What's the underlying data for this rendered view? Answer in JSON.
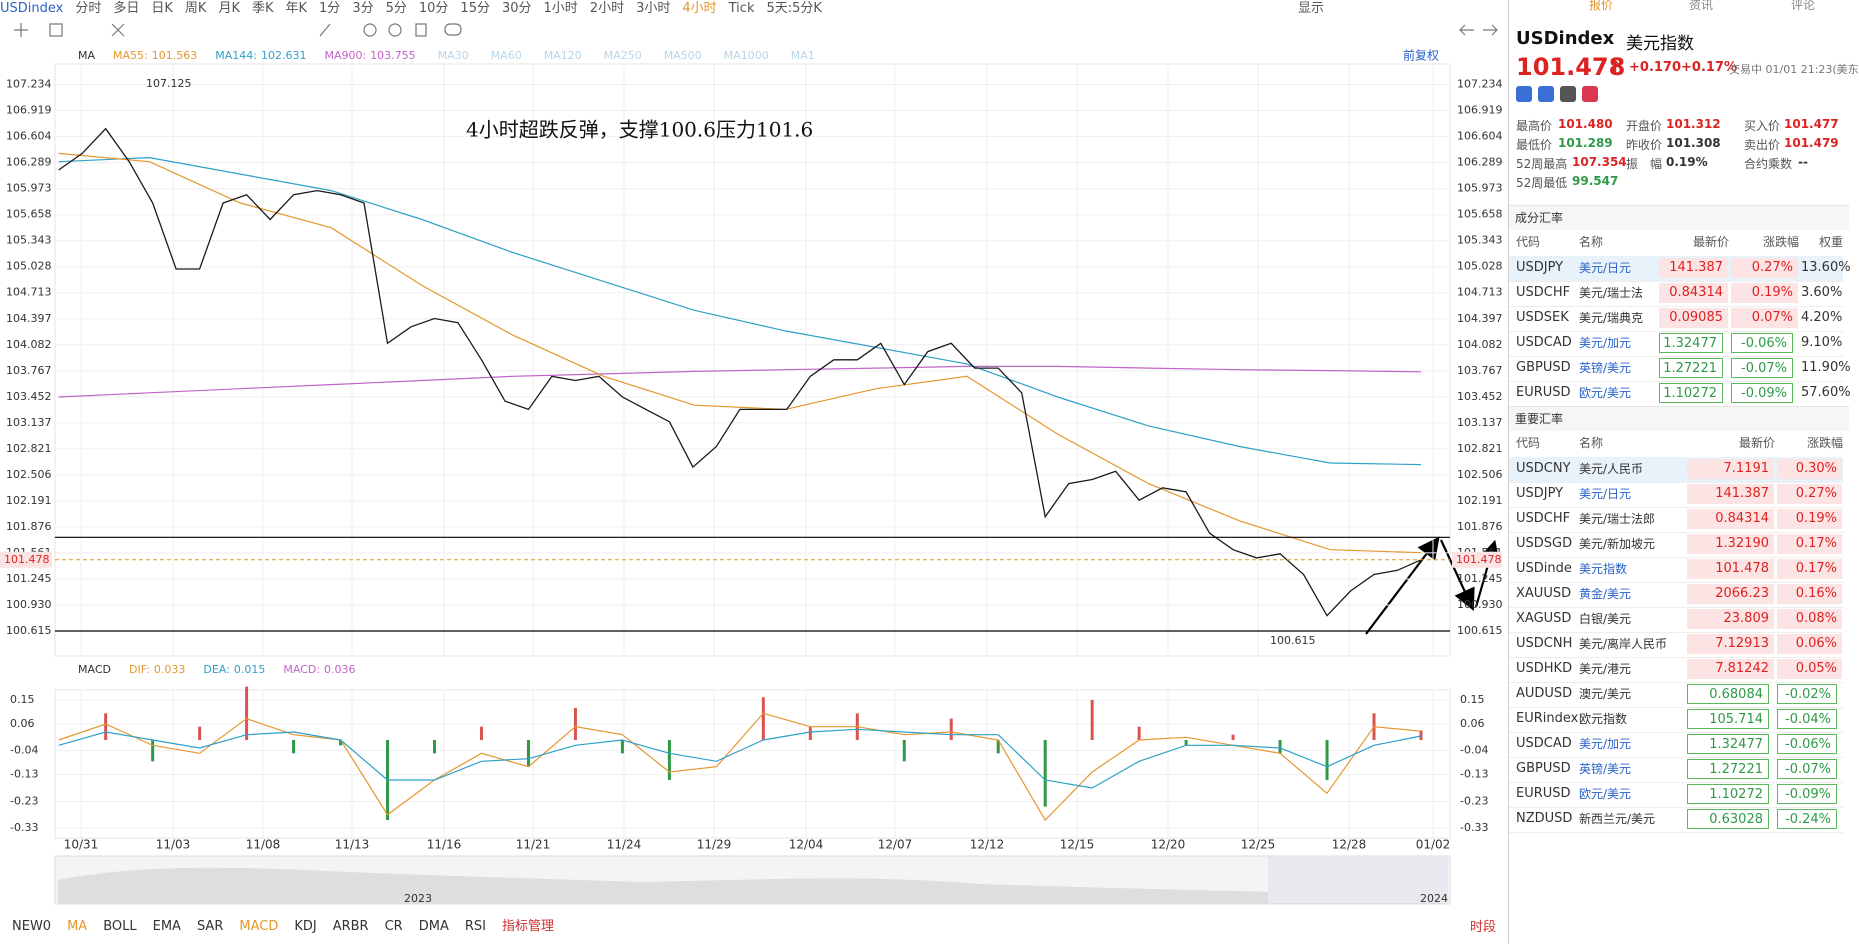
{
  "toolbar": {
    "symbol": "USDindex",
    "periods": [
      "分时",
      "多日",
      "日K",
      "周K",
      "月K",
      "季K",
      "年K",
      "1分",
      "3分",
      "5分",
      "10分",
      "15分",
      "30分",
      "1小时",
      "2小时",
      "3小时",
      "4小时",
      "Tick"
    ],
    "range": "5天:5分K",
    "view": "显示"
  },
  "chart_data": [
    {
      "type": "line",
      "title": "MA",
      "adjust": "前复权",
      "inactive": [
        "MA30",
        "MA60",
        "MA120",
        "MA250",
        "MA500",
        "MA1000",
        "MA1"
      ],
      "ylim": [
        100.615,
        107.234
      ],
      "yticks": [
        107.234,
        106.919,
        106.604,
        106.289,
        105.973,
        105.658,
        105.343,
        105.028,
        104.713,
        104.397,
        104.082,
        103.767,
        103.452,
        103.137,
        102.821,
        102.506,
        102.191,
        101.876,
        101.561,
        101.245,
        {
          "value": 100.93,
          "label": "100.930"
        },
        100.615
      ],
      "x_labels": [
        "10/31",
        "11/03",
        "11/08",
        "11/13",
        "11/16",
        "11/21",
        "11/24",
        "11/29",
        "12/04",
        "12/07",
        "12/12",
        "12/15",
        "12/20",
        "12/25",
        "12/28",
        "01/02"
      ],
      "annotation": "4小时超跌反弹，支撑100.6压力101.6",
      "high": 107.125,
      "low": 100.615,
      "current": 101.478,
      "levels": [
        101.75,
        100.615
      ],
      "series": [
        {
          "color": "#1a1a1a",
          "values": [
            106.2,
            106.4,
            106.7,
            106.3,
            105.8,
            105.0,
            105.0,
            105.8,
            105.9,
            105.6,
            105.9,
            105.95,
            105.9,
            105.8,
            104.1,
            104.3,
            104.4,
            104.35,
            103.9,
            103.4,
            103.3,
            103.7,
            103.65,
            103.7,
            103.45,
            103.3,
            103.15,
            102.6,
            102.85,
            103.3,
            103.3,
            103.3,
            103.7,
            103.9,
            103.9,
            104.1,
            103.6,
            104.0,
            104.1,
            103.8,
            103.8,
            103.5,
            102.0,
            102.4,
            102.45,
            102.55,
            102.2,
            102.35,
            102.3,
            101.8,
            101.6,
            101.5,
            101.55,
            101.3,
            100.8,
            101.1,
            101.3,
            101.35,
            101.478
          ]
        },
        {
          "name": "MA55:",
          "color": "#e6962e",
          "values": [
            106.4,
            106.3,
            105.8,
            105.5,
            104.8,
            104.2,
            103.7,
            103.35,
            103.3,
            103.55,
            103.7,
            103.0,
            102.4,
            101.95,
            101.6,
            101.563
          ]
        },
        {
          "name": "MA144:",
          "color": "#2fa0c8",
          "values": [
            106.3,
            106.35,
            106.15,
            105.95,
            105.6,
            105.2,
            104.85,
            104.5,
            104.25,
            104.05,
            103.85,
            103.45,
            103.1,
            102.85,
            102.65,
            102.631
          ]
        },
        {
          "name": "MA900:",
          "color": "#c064c8",
          "values": [
            103.45,
            103.5,
            103.55,
            103.6,
            103.65,
            103.7,
            103.73,
            103.76,
            103.78,
            103.8,
            103.82,
            103.82,
            103.8,
            103.78,
            103.77,
            103.755
          ]
        }
      ]
    },
    {
      "type": "bar",
      "title": "MACD",
      "ylim": [
        -0.33,
        0.15
      ],
      "yticks": [
        0.15,
        0.06,
        -0.04,
        -0.13,
        -0.23,
        -0.33
      ],
      "series": [
        {
          "name": "DIF:",
          "color": "#e6962e",
          "values": [
            0.0,
            0.06,
            -0.02,
            -0.05,
            0.08,
            0.02,
            0.0,
            -0.28,
            -0.15,
            -0.05,
            -0.1,
            0.05,
            0.02,
            -0.12,
            -0.1,
            0.1,
            0.05,
            0.05,
            0.02,
            0.03,
            0.0,
            -0.3,
            -0.12,
            0.0,
            0.01,
            -0.02,
            -0.05,
            -0.2,
            0.05,
            0.033
          ]
        },
        {
          "name": "DEA:",
          "color": "#2fa0c8",
          "values": [
            -0.02,
            0.03,
            0.0,
            -0.03,
            0.02,
            0.03,
            0.0,
            -0.15,
            -0.15,
            -0.08,
            -0.07,
            -0.02,
            0.0,
            -0.05,
            -0.08,
            0.0,
            0.03,
            0.04,
            0.03,
            0.02,
            0.02,
            -0.15,
            -0.18,
            -0.08,
            -0.02,
            -0.02,
            -0.03,
            -0.1,
            -0.02,
            0.015
          ]
        },
        {
          "name": "MACD:",
          "color": "#c064c8",
          "values": [
            0.0,
            0.1,
            -0.08,
            0.05,
            0.2,
            -0.05,
            -0.02,
            -0.3,
            -0.05,
            0.05,
            -0.1,
            0.12,
            -0.05,
            -0.15,
            0.0,
            0.16,
            0.05,
            0.1,
            -0.08,
            0.08,
            -0.05,
            -0.25,
            0.15,
            0.05,
            -0.02,
            0.02,
            -0.05,
            -0.15,
            0.1,
            0.036
          ]
        }
      ]
    }
  ],
  "navigator": {
    "years": [
      "2023",
      "2024"
    ]
  },
  "indicators": [
    "NEW0",
    "MA",
    "BOLL",
    "EMA",
    "SAR",
    "MACD",
    "KDJ",
    "ARBR",
    "CR",
    "DMA",
    "RSI",
    "指标管理"
  ],
  "session": "时段",
  "panel": {
    "tabs": [
      "报价",
      "资讯",
      "评论"
    ],
    "symbol": "USDindex",
    "name": "美元指数",
    "price": "101.478",
    "change": "+0.170",
    "pct": "+0.17%",
    "status": "交易中 01/01 21:23(美东",
    "stats": [
      [
        "最高价",
        "101.480"
      ],
      [
        "开盘价",
        "101.312"
      ],
      [
        "买入价",
        "101.477"
      ],
      [
        "最低价",
        "101.289"
      ],
      [
        "昨收价",
        "101.308"
      ],
      [
        "卖出价",
        "101.479"
      ],
      [
        "52周最高",
        "107.354"
      ],
      [
        "振　幅",
        "0.19%"
      ],
      [
        "合约乘数",
        "--"
      ],
      [
        "52周最低",
        "99.547"
      ]
    ],
    "table1": {
      "title": "成分汇率",
      "headers": [
        "代码",
        "名称",
        "最新价",
        "涨跌幅",
        "权重"
      ],
      "rows": [
        [
          "USDJPY",
          "美元/日元",
          "141.387",
          "0.27%",
          "13.60%"
        ],
        [
          "USDCHF",
          "美元/瑞士法",
          "0.84314",
          "0.19%",
          "3.60%"
        ],
        [
          "USDSEK",
          "美元/瑞典克",
          "0.09085",
          "0.07%",
          "4.20%"
        ],
        [
          "USDCAD",
          "美元/加元",
          "1.32477",
          "-0.06%",
          "9.10%"
        ],
        [
          "GBPUSD",
          "英镑/美元",
          "1.27221",
          "-0.07%",
          "11.90%"
        ],
        [
          "EURUSD",
          "欧元/美元",
          "1.10272",
          "-0.09%",
          "57.60%"
        ]
      ]
    },
    "table2": {
      "title": "重要汇率",
      "headers": [
        "代码",
        "名称",
        "最新价",
        "涨跌幅"
      ],
      "rows": [
        [
          "USDCNY",
          "美元/人民币",
          "7.1191",
          "0.30%"
        ],
        [
          "USDJPY",
          "美元/日元",
          "141.387",
          "0.27%"
        ],
        [
          "USDCHF",
          "美元/瑞士法郎",
          "0.84314",
          "0.19%"
        ],
        [
          "USDSGD",
          "美元/新加坡元",
          "1.32190",
          "0.17%"
        ],
        [
          "USDinde",
          "美元指数",
          "101.478",
          "0.17%"
        ],
        [
          "XAUUSD",
          "黄金/美元",
          "2066.23",
          "0.16%"
        ],
        [
          "XAGUSD",
          "白银/美元",
          "23.809",
          "0.08%"
        ],
        [
          "USDCNH",
          "美元/离岸人民币",
          "7.12913",
          "0.06%"
        ],
        [
          "USDHKD",
          "美元/港元",
          "7.81242",
          "0.05%"
        ],
        [
          "AUDUSD",
          "澳元/美元",
          "0.68084",
          "-0.02%"
        ],
        [
          "EURindex",
          "欧元指数",
          "105.714",
          "-0.04%"
        ],
        [
          "USDCAD",
          "美元/加元",
          "1.32477",
          "-0.06%"
        ],
        [
          "GBPUSD",
          "英镑/美元",
          "1.27221",
          "-0.07%"
        ],
        [
          "EURUSD",
          "欧元/美元",
          "1.10272",
          "-0.09%"
        ],
        [
          "NZDUSD",
          "新西兰元/美元",
          "0.63028",
          "-0.24%"
        ]
      ]
    }
  }
}
